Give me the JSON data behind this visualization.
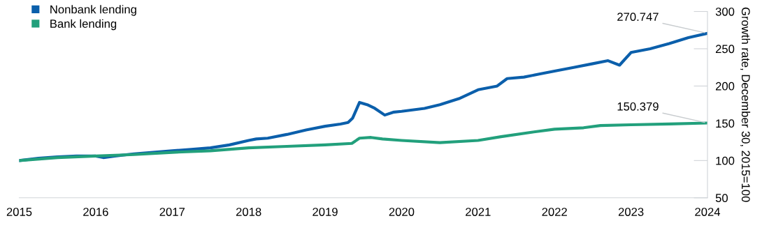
{
  "chart_data": {
    "type": "line",
    "ylabel": "Growth rate, December 30, 2015=100",
    "xlim": [
      2015,
      2024
    ],
    "xticks": [
      2015,
      2016,
      2017,
      2018,
      2019,
      2020,
      2021,
      2022,
      2023,
      2024
    ],
    "ylim": [
      50,
      300
    ],
    "yticks": [
      50,
      100,
      150,
      200,
      250,
      300
    ],
    "legend": "top left",
    "grid": false,
    "series": [
      {
        "name": "Nonbank lending",
        "color": "#0b5fab",
        "x": [
          2015.0,
          2015.25,
          2015.5,
          2015.75,
          2016.0,
          2016.1,
          2016.25,
          2016.5,
          2016.75,
          2017.0,
          2017.25,
          2017.5,
          2017.75,
          2018.0,
          2018.1,
          2018.25,
          2018.5,
          2018.75,
          2019.0,
          2019.2,
          2019.3,
          2019.36,
          2019.45,
          2019.55,
          2019.65,
          2019.78,
          2019.9,
          2020.0,
          2020.3,
          2020.5,
          2020.75,
          2021.0,
          2021.25,
          2021.38,
          2021.6,
          2021.8,
          2022.0,
          2022.25,
          2022.5,
          2022.7,
          2022.85,
          2023.0,
          2023.25,
          2023.5,
          2023.75,
          2024.0
        ],
        "values": [
          100,
          103,
          105,
          106,
          106,
          104,
          106,
          109,
          111,
          113,
          115,
          117,
          121,
          127,
          129,
          130,
          135,
          141,
          146,
          149,
          151,
          157,
          178,
          175,
          170,
          161,
          165,
          166,
          170,
          175,
          183,
          195,
          200,
          210,
          212,
          216,
          220,
          225,
          230,
          234,
          228,
          245,
          250,
          257,
          265,
          270.747
        ]
      },
      {
        "name": "Bank lending",
        "color": "#22a07c",
        "x": [
          2015.0,
          2015.5,
          2016.0,
          2016.5,
          2017.0,
          2017.5,
          2018.0,
          2018.5,
          2019.0,
          2019.35,
          2019.45,
          2019.6,
          2019.75,
          2020.0,
          2020.5,
          2021.0,
          2021.3,
          2021.7,
          2022.0,
          2022.38,
          2022.6,
          2023.0,
          2023.5,
          2024.0
        ],
        "values": [
          100,
          104,
          106,
          108,
          111,
          113,
          117,
          119,
          121,
          123,
          130,
          131,
          129,
          127,
          124,
          127,
          132,
          138,
          142,
          144,
          147,
          148,
          149,
          150.379
        ]
      }
    ],
    "annotations": [
      {
        "text": "270.747",
        "x": 2024.0,
        "y": 270.747
      },
      {
        "text": "150.379",
        "x": 2024.0,
        "y": 150.379
      }
    ]
  }
}
